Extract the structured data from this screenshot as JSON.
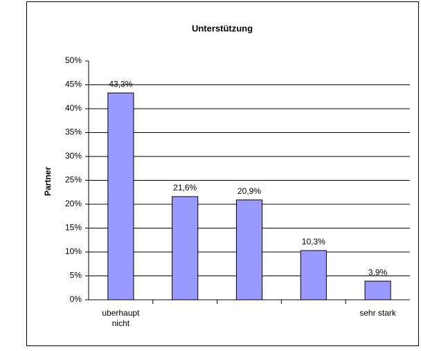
{
  "chart_data": {
    "type": "bar",
    "title": "Unterstützung",
    "y_label": "Partner",
    "categories": [
      "uberhaupt nicht",
      null,
      null,
      null,
      "sehr stark"
    ],
    "values": [
      43.3,
      21.6,
      20.9,
      10.3,
      3.9
    ],
    "value_labels": [
      "43,3%",
      "21,6%",
      "20,9%",
      "10,3%",
      "3,9%"
    ],
    "color": "#9999ff",
    "ylim": [
      0,
      50
    ],
    "yticks": [
      {
        "value": 0,
        "label": "0%"
      },
      {
        "value": 5,
        "label": "5%"
      },
      {
        "value": 10,
        "label": "10%"
      },
      {
        "value": 15,
        "label": "15%"
      },
      {
        "value": 20,
        "label": "20%"
      },
      {
        "value": 25,
        "label": "25%"
      },
      {
        "value": 30,
        "label": "30%"
      },
      {
        "value": 35,
        "label": "35%"
      },
      {
        "value": 40,
        "label": "40%"
      },
      {
        "value": 45,
        "label": "45%"
      },
      {
        "value": 50,
        "label": "50%"
      }
    ],
    "grid": true
  }
}
